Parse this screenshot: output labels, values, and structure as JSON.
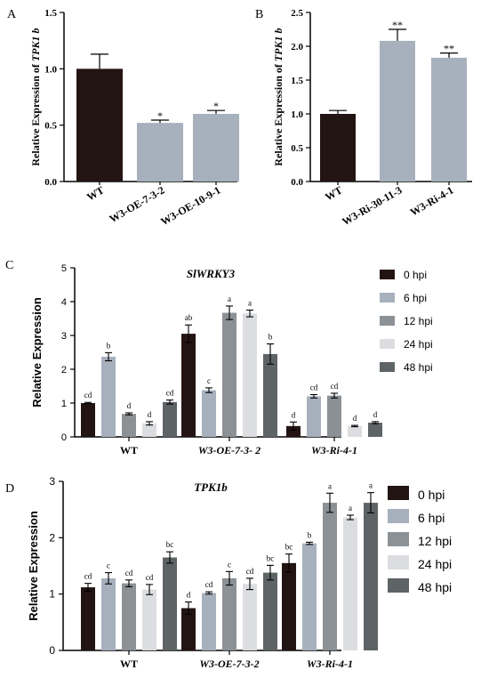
{
  "colors": {
    "0 hpi": "#231414",
    "6 hpi": "#a7b0bd",
    "12 hpi": "#8c9196",
    "24 hpi": "#dcdde0",
    "48 hpi": "#5e6466"
  },
  "chart_data": [
    {
      "id": "A",
      "panel_label": "A",
      "type": "bar",
      "ylabel_prefix": "Relative Expression of ",
      "ylabel_italic": "TPK1 b",
      "ylim": [
        0,
        1.5
      ],
      "yticks": [
        "0.0",
        "0.5",
        "1.0",
        "1.5"
      ],
      "tick_values": [
        0,
        0.5,
        1.0,
        1.5
      ],
      "categories": [
        "WT",
        "W3-OE-7-3-2",
        "W3-OE-10-9-1"
      ],
      "values": [
        1.0,
        0.52,
        0.6
      ],
      "errors": [
        0.13,
        0.025,
        0.03
      ],
      "sig": [
        "",
        "*",
        "*"
      ],
      "bar_colors": [
        "#231414",
        "#a7b0bd",
        "#a7b0bd"
      ]
    },
    {
      "id": "B",
      "panel_label": "B",
      "type": "bar",
      "ylabel_prefix": "Relative Expression of ",
      "ylabel_italic": "TPK1 b",
      "ylim": [
        0,
        2.5
      ],
      "yticks": [
        "0.0",
        "0.5",
        "1.0",
        "1.5",
        "2.0",
        "2.5"
      ],
      "tick_values": [
        0,
        0.5,
        1.0,
        1.5,
        2.0,
        2.5
      ],
      "categories": [
        "WT",
        "W3-Ri-30-11-3",
        "W3-Ri-4-1"
      ],
      "values": [
        1.0,
        2.08,
        1.83
      ],
      "errors": [
        0.05,
        0.17,
        0.07
      ],
      "sig": [
        "",
        "**",
        "**"
      ],
      "bar_colors": [
        "#231414",
        "#a7b0bd",
        "#a7b0bd"
      ]
    },
    {
      "id": "C",
      "panel_label": "C",
      "type": "bar",
      "title": "SlWRKY3",
      "ylabel": "Relative Expression",
      "ylim": [
        0,
        5
      ],
      "yticks": [
        "0",
        "1",
        "2",
        "3",
        "4",
        "5"
      ],
      "tick_values": [
        0,
        1,
        2,
        3,
        4,
        5
      ],
      "categories": [
        "WT",
        "W3-OE-7-3- 2",
        "W3-Ri-4-1"
      ],
      "series": [
        {
          "name": "0 hpi",
          "values": [
            1.0,
            3.05,
            0.32
          ],
          "errors": [
            0.02,
            0.26,
            0.12
          ],
          "letters": [
            "cd",
            "ab",
            "d"
          ]
        },
        {
          "name": "6 hpi",
          "values": [
            2.37,
            1.38,
            1.2
          ],
          "errors": [
            0.12,
            0.07,
            0.05
          ],
          "letters": [
            "b",
            "c",
            "cd"
          ]
        },
        {
          "name": "12 hpi",
          "values": [
            0.68,
            3.67,
            1.22
          ],
          "errors": [
            0.03,
            0.2,
            0.07
          ],
          "letters": [
            "d",
            "a",
            "cd"
          ]
        },
        {
          "name": "24 hpi",
          "values": [
            0.4,
            3.65,
            0.32
          ],
          "errors": [
            0.05,
            0.1,
            0.02
          ],
          "letters": [
            "d",
            "a",
            "d"
          ]
        },
        {
          "name": "48 hpi",
          "values": [
            1.03,
            2.45,
            0.42
          ],
          "errors": [
            0.06,
            0.3,
            0.03
          ],
          "letters": [
            "cd",
            "b",
            "d"
          ]
        }
      ]
    },
    {
      "id": "D",
      "panel_label": "D",
      "type": "bar",
      "title": "TPK1b",
      "ylabel": "Relative Expression",
      "ylim": [
        0,
        3
      ],
      "yticks": [
        "0",
        "1",
        "2",
        "3"
      ],
      "tick_values": [
        0,
        1,
        2,
        3
      ],
      "categories": [
        "WT",
        "W3-OE-7-3-2",
        "W3-Ri-4-1"
      ],
      "series": [
        {
          "name": "0 hpi",
          "values": [
            1.12,
            0.75,
            1.55
          ],
          "errors": [
            0.07,
            0.11,
            0.16
          ],
          "letters": [
            "cd",
            "d",
            "bc"
          ]
        },
        {
          "name": "6 hpi",
          "values": [
            1.28,
            1.02,
            1.9
          ],
          "errors": [
            0.1,
            0.02,
            0.02
          ],
          "letters": [
            "c",
            "cd",
            "b"
          ]
        },
        {
          "name": "12 hpi",
          "values": [
            1.19,
            1.28,
            2.62
          ],
          "errors": [
            0.06,
            0.12,
            0.17
          ],
          "letters": [
            "cd",
            "c",
            "a"
          ]
        },
        {
          "name": "24 hpi",
          "values": [
            1.08,
            1.18,
            2.36
          ],
          "errors": [
            0.09,
            0.1,
            0.04
          ],
          "letters": [
            "cd",
            "cd",
            "a"
          ]
        },
        {
          "name": "48 hpi",
          "values": [
            1.65,
            1.38,
            2.62
          ],
          "errors": [
            0.1,
            0.13,
            0.18
          ],
          "letters": [
            "bc",
            "bc",
            "a"
          ]
        }
      ]
    }
  ]
}
